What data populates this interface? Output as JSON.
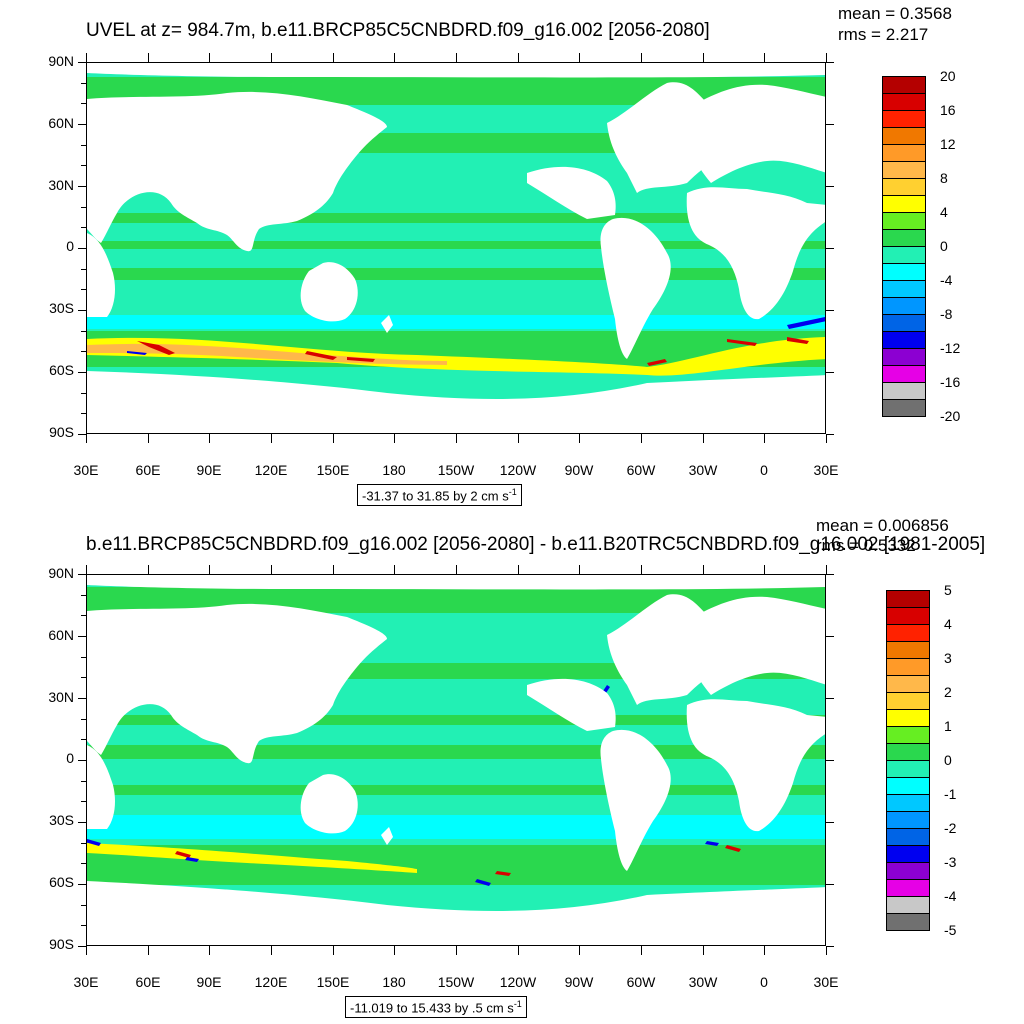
{
  "panels": [
    {
      "id": "top",
      "title": "UVEL at z= 984.7m, b.e11.BRCP85C5CNBDRD.f09_g16.002 [2056-2080]",
      "mean_text": "mean = 0.3568",
      "rms_text": "rms = 2.217",
      "range_text": "-31.37 to 31.85 by 2 cm s",
      "range_exp": "-1",
      "colorbar_labels": [
        "20",
        "16",
        "12",
        "8",
        "4",
        "0",
        "-4",
        "-8",
        "-12",
        "-16",
        "-20"
      ],
      "colors": [
        "#b40000",
        "#d80000",
        "#ff2200",
        "#f07800",
        "#ff9a28",
        "#ffb84a",
        "#ffd030",
        "#ffff00",
        "#66ee22",
        "#2ad84e",
        "#22f0b4",
        "#00ffff",
        "#00c8ff",
        "#0096ff",
        "#0064e6",
        "#0000f0",
        "#8c00d2",
        "#e600e6",
        "#c8c8c8",
        "#707070"
      ]
    },
    {
      "id": "bottom",
      "title": "b.e11.BRCP85C5CNBDRD.f09_g16.002 [2056-2080] - b.e11.B20TRC5CNBDRD.f09_g16.002 [1981-2005]",
      "mean_text": "mean = 0.006856",
      "rms_text": "rms = 0.5332",
      "range_text": "-11.019 to 15.433 by .5 cm s",
      "range_exp": "-1",
      "colorbar_labels": [
        "5",
        "4",
        "3",
        "2",
        "1",
        "0",
        "-1",
        "-2",
        "-3",
        "-4",
        "-5"
      ],
      "colors": [
        "#b40000",
        "#d80000",
        "#ff2200",
        "#f07800",
        "#ff9a28",
        "#ffb84a",
        "#ffd030",
        "#ffff00",
        "#66ee22",
        "#2ad84e",
        "#22f0b4",
        "#00ffff",
        "#00c8ff",
        "#0096ff",
        "#0064e6",
        "#0000f0",
        "#8c00d2",
        "#e600e6",
        "#c8c8c8",
        "#707070"
      ]
    }
  ],
  "lat_labels": [
    "90N",
    "60N",
    "30N",
    "0",
    "30S",
    "60S",
    "90S"
  ],
  "lon_labels": [
    "30E",
    "60E",
    "90E",
    "120E",
    "150E",
    "180",
    "150W",
    "120W",
    "90W",
    "60W",
    "30W",
    "0",
    "30E"
  ],
  "fill_colors": {
    "cyan": "#22f0b4",
    "green": "#2ad84e",
    "light_cyan": "#00ffff",
    "yellow": "#ffff00",
    "orange": "#ffb84a",
    "red": "#d80000",
    "blue": "#0000f0",
    "land": "#ffffff"
  }
}
